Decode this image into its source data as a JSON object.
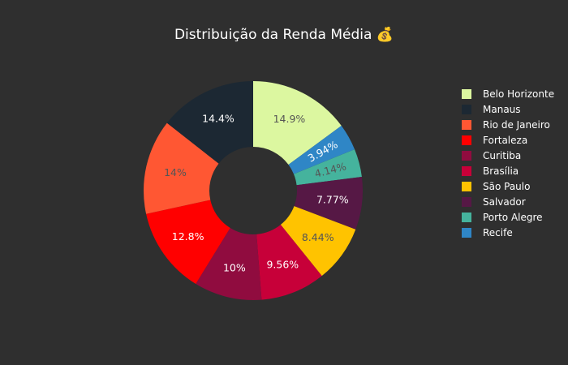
{
  "chart_data": {
    "type": "pie",
    "hole": true,
    "title": "Distribuição da Renda Média 💰",
    "slices": [
      {
        "label": "Belo Horizonte",
        "value": 14.9,
        "text": "14.9%",
        "color": "#dcf7a0",
        "text_color": "#555555"
      },
      {
        "label": "Recife",
        "value": 3.94,
        "text": "3.94%",
        "color": "#2f86c6",
        "text_color": "#ffffff"
      },
      {
        "label": "Porto Alegre",
        "value": 4.14,
        "text": "4.14%",
        "color": "#45b39d",
        "text_color": "#555555"
      },
      {
        "label": "Salvador",
        "value": 7.77,
        "text": "7.77%",
        "color": "#561845",
        "text_color": "#ffffff"
      },
      {
        "label": "São Paulo",
        "value": 8.44,
        "text": "8.44%",
        "color": "#ffc300",
        "text_color": "#555555"
      },
      {
        "label": "Brasília",
        "value": 9.56,
        "text": "9.56%",
        "color": "#c70039",
        "text_color": "#ffffff"
      },
      {
        "label": "Curitiba",
        "value": 10,
        "text": "10%",
        "color": "#900c3f",
        "text_color": "#ffffff"
      },
      {
        "label": "Fortaleza",
        "value": 12.8,
        "text": "12.8%",
        "color": "#ff0000",
        "text_color": "#ffffff"
      },
      {
        "label": "Rio de Janeiro",
        "value": 14,
        "text": "14%",
        "color": "#ff5733",
        "text_color": "#555555"
      },
      {
        "label": "Manaus",
        "value": 14.4,
        "text": "14.4%",
        "color": "#1c2833",
        "text_color": "#ffffff"
      }
    ],
    "legend": {
      "position": "right",
      "entries": [
        {
          "label": "Belo Horizonte",
          "color": "#dcf7a0"
        },
        {
          "label": "Manaus",
          "color": "#1c2833"
        },
        {
          "label": "Rio de Janeiro",
          "color": "#ff5733"
        },
        {
          "label": "Fortaleza",
          "color": "#ff0000"
        },
        {
          "label": "Curitiba",
          "color": "#900c3f"
        },
        {
          "label": "Brasília",
          "color": "#c70039"
        },
        {
          "label": "São Paulo",
          "color": "#ffc300"
        },
        {
          "label": "Salvador",
          "color": "#561845"
        },
        {
          "label": "Porto Alegre",
          "color": "#45b39d"
        },
        {
          "label": "Recife",
          "color": "#2f86c6"
        }
      ]
    }
  }
}
